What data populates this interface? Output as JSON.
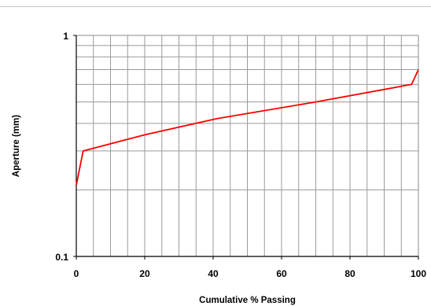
{
  "chart_data": {
    "type": "line",
    "title": "",
    "xlabel": "Cumulative % Passing",
    "ylabel": "Aperture (mm)",
    "xlim": [
      0,
      100
    ],
    "ylim": [
      0.1,
      1
    ],
    "y_scale": "log",
    "grid": true,
    "legend": "none",
    "x_ticks": [
      "0",
      "20",
      "40",
      "60",
      "80",
      "100"
    ],
    "y_ticks": [
      "0.1",
      "1"
    ],
    "series": [
      {
        "color": "#ff0000",
        "x": [
          0,
          2,
          20,
          41,
          70,
          98,
          100
        ],
        "y": [
          0.21,
          0.3,
          0.355,
          0.42,
          0.5,
          0.6,
          0.7
        ]
      }
    ]
  }
}
